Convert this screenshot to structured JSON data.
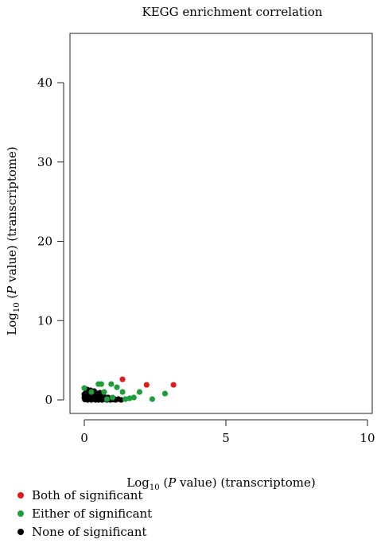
{
  "chart_data": {
    "type": "scatter",
    "title": "KEGG enrichment correlation",
    "xlabel": {
      "pre": "Log",
      "sub": "10",
      "open": " (",
      "p": "P",
      "post": " value) (transcriptome)"
    },
    "ylabel": {
      "pre": "Log",
      "sub": "10",
      "open": " (",
      "p": "P",
      "post": " value) (transcriptome)"
    },
    "xlim": [
      -0.5,
      10
    ],
    "ylim": [
      -1,
      45
    ],
    "x_ticks": [
      0,
      5,
      10
    ],
    "y_ticks": [
      0,
      10,
      20,
      30,
      40
    ],
    "x_tick_labels": [
      "0",
      "5",
      "10"
    ],
    "y_tick_labels": [
      "0",
      "10",
      "20",
      "30",
      "40"
    ],
    "grid": false,
    "legend_position": "bottom-left",
    "series": [
      {
        "name": "Both of significant",
        "color": "#e31a1c",
        "points": [
          [
            1.35,
            2.6
          ],
          [
            2.2,
            1.9
          ],
          [
            3.15,
            1.9
          ]
        ]
      },
      {
        "name": "Either of significant",
        "color": "#1e9e3a",
        "points": [
          [
            0.0,
            1.5
          ],
          [
            0.5,
            2.0
          ],
          [
            0.6,
            2.0
          ],
          [
            0.95,
            2.0
          ],
          [
            1.35,
            1.0
          ],
          [
            1.6,
            0.2
          ],
          [
            1.75,
            0.3
          ],
          [
            1.95,
            1.0
          ],
          [
            2.4,
            0.1
          ],
          [
            2.85,
            0.8
          ],
          [
            0.7,
            1.0
          ],
          [
            1.0,
            0.3
          ],
          [
            1.15,
            1.6
          ],
          [
            0.25,
            1.0
          ],
          [
            0.8,
            0.1
          ],
          [
            1.45,
            0.1
          ]
        ]
      },
      {
        "name": "None of significant",
        "color": "#000000",
        "points": [
          [
            0.02,
            0.05
          ],
          [
            0.05,
            0.3
          ],
          [
            0.08,
            0.6
          ],
          [
            0.1,
            1.0
          ],
          [
            0.12,
            0.0
          ],
          [
            0.15,
            0.4
          ],
          [
            0.18,
            0.8
          ],
          [
            0.2,
            0.2
          ],
          [
            0.22,
            1.2
          ],
          [
            0.25,
            0.0
          ],
          [
            0.28,
            0.5
          ],
          [
            0.3,
            0.9
          ],
          [
            0.32,
            0.1
          ],
          [
            0.35,
            0.3
          ],
          [
            0.38,
            0.7
          ],
          [
            0.4,
            0.0
          ],
          [
            0.42,
            0.4
          ],
          [
            0.45,
            0.2
          ],
          [
            0.48,
            0.6
          ],
          [
            0.5,
            0.0
          ],
          [
            0.52,
            0.3
          ],
          [
            0.55,
            0.5
          ],
          [
            0.58,
            0.1
          ],
          [
            0.6,
            0.35
          ],
          [
            0.63,
            0.0
          ],
          [
            0.66,
            0.25
          ],
          [
            0.7,
            0.4
          ],
          [
            0.73,
            0.1
          ],
          [
            0.76,
            0.2
          ],
          [
            0.8,
            0.0
          ],
          [
            0.84,
            0.3
          ],
          [
            0.88,
            0.1
          ],
          [
            0.92,
            0.0
          ],
          [
            0.96,
            0.2
          ],
          [
            1.0,
            0.05
          ],
          [
            1.05,
            0.15
          ],
          [
            1.1,
            0.0
          ],
          [
            1.2,
            0.1
          ],
          [
            1.3,
            0.0
          ],
          [
            0.05,
            0.9
          ],
          [
            0.1,
            1.3
          ],
          [
            0.15,
            0.1
          ],
          [
            0.2,
            0.7
          ],
          [
            0.3,
            0.15
          ],
          [
            0.35,
            1.1
          ],
          [
            0.45,
            0.8
          ],
          [
            0.55,
            0.9
          ],
          [
            0.65,
            0.6
          ],
          [
            0.0,
            0.3
          ],
          [
            0.0,
            0.7
          ]
        ]
      }
    ]
  }
}
